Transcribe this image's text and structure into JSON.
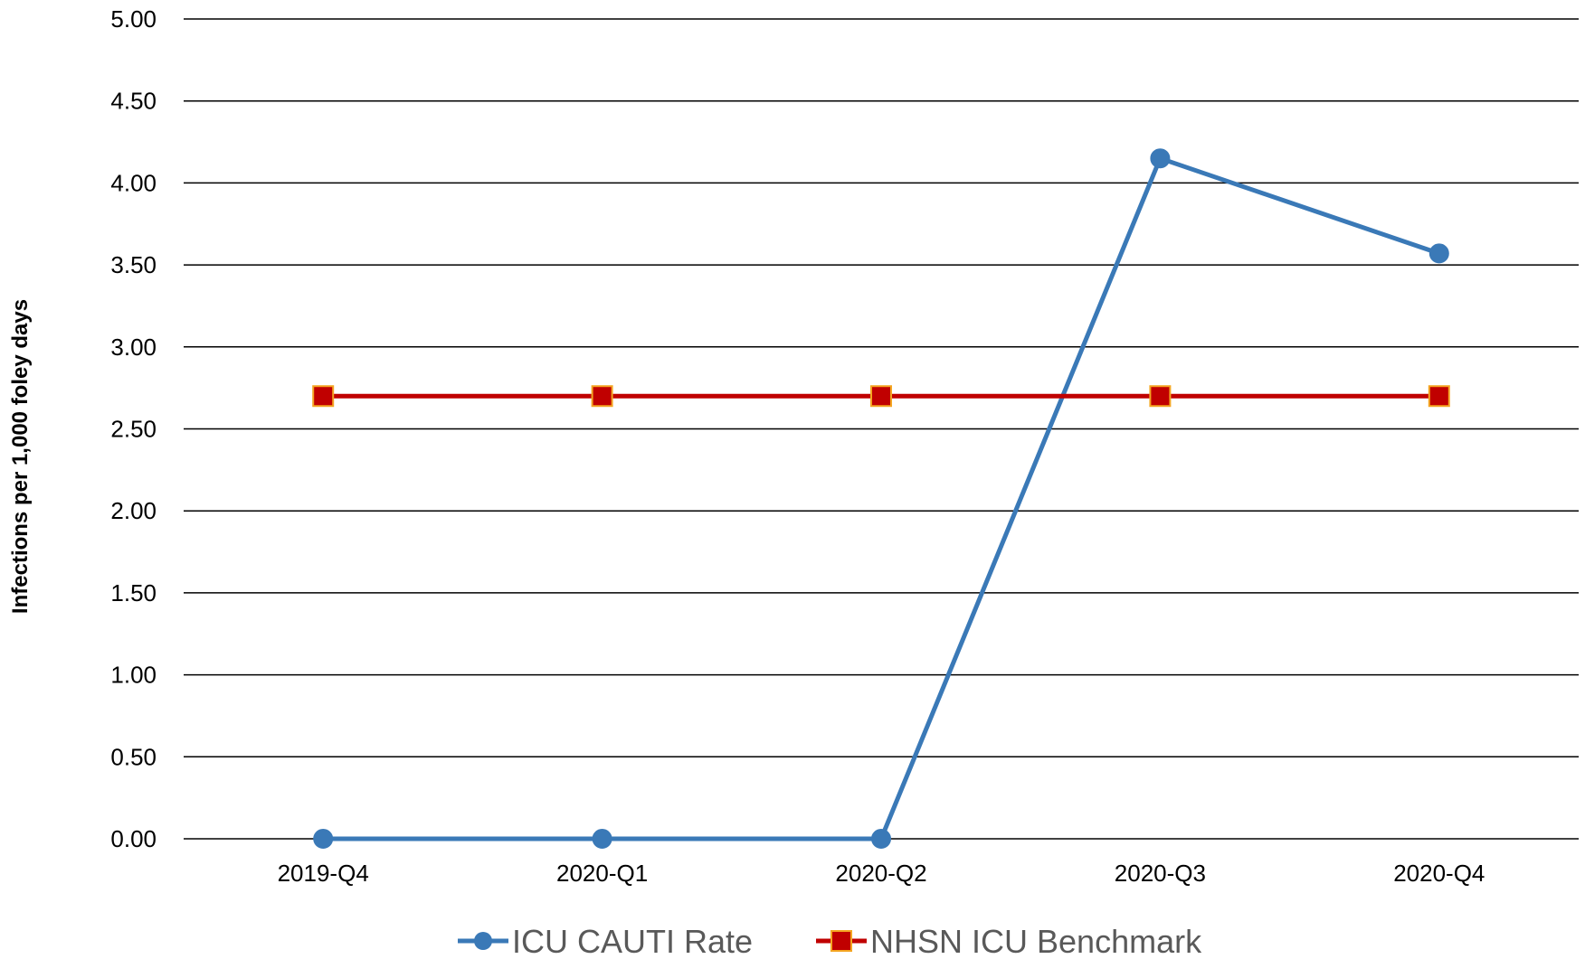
{
  "chart_data": {
    "type": "line",
    "categories": [
      "2019-Q4",
      "2020-Q1",
      "2020-Q2",
      "2020-Q3",
      "2020-Q4"
    ],
    "series": [
      {
        "name": "ICU CAUTI Rate",
        "values": [
          0.0,
          0.0,
          0.0,
          4.15,
          3.57
        ],
        "color": "#3A79B7",
        "marker": "circle"
      },
      {
        "name": "NHSN ICU Benchmark",
        "values": [
          2.7,
          2.7,
          2.7,
          2.7,
          2.7
        ],
        "color": "#C00000",
        "marker_edge": "#F4A522",
        "marker": "square"
      }
    ],
    "ylabel": "Infections per 1,000 foley days",
    "ylim": [
      0,
      5
    ],
    "yticks": [
      "0.00",
      "0.50",
      "1.00",
      "1.50",
      "2.00",
      "2.50",
      "3.00",
      "3.50",
      "4.00",
      "4.50",
      "5.00"
    ],
    "grid": "horizontal",
    "legend": "bottom"
  }
}
